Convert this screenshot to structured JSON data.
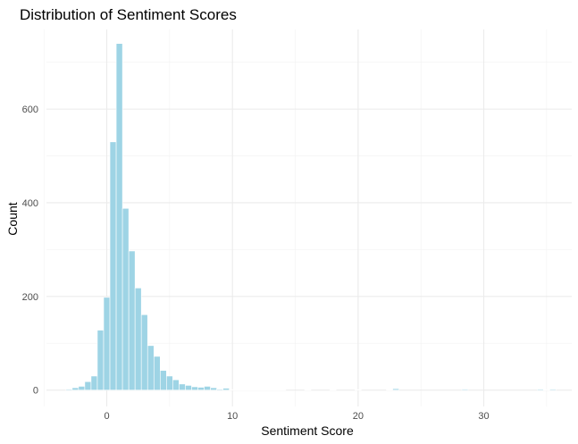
{
  "chart_data": {
    "type": "bar",
    "title": "Distribution of Sentiment Scores",
    "xlabel": "Sentiment Score",
    "ylabel": "Count",
    "xlim": [
      -4.8,
      37
    ],
    "ylim": [
      -35,
      770
    ],
    "x_ticks": [
      0,
      10,
      20,
      30
    ],
    "x_minor_ticks": [
      -5,
      5,
      15,
      25,
      35
    ],
    "y_ticks": [
      0,
      200,
      400,
      600
    ],
    "y_minor_ticks": [
      100,
      300,
      500,
      700
    ],
    "bin_width": 0.5,
    "bar_color": "#9ed4e5",
    "grid": true,
    "x": [
      -3,
      -2.5,
      -2,
      -1.5,
      -1,
      -0.5,
      0,
      0.5,
      1,
      1.5,
      2,
      2.5,
      3,
      3.5,
      4,
      4.5,
      5,
      5.5,
      6,
      6.5,
      7,
      7.5,
      8,
      8.5,
      9,
      9.5,
      10,
      10.5,
      11,
      11.5,
      12,
      12.5,
      13,
      13.5,
      14,
      16,
      18,
      20,
      22.5,
      23,
      28.5,
      34.5,
      35,
      35.5
    ],
    "values": [
      2,
      5,
      8,
      18,
      30,
      128,
      198,
      530,
      740,
      388,
      297,
      218,
      161,
      95,
      72,
      42,
      30,
      22,
      13,
      10,
      7,
      6,
      8,
      5,
      2,
      4,
      1,
      1,
      1,
      1,
      1,
      1,
      1,
      1,
      1,
      1,
      1,
      1,
      1,
      3,
      2,
      2,
      1,
      2
    ]
  }
}
